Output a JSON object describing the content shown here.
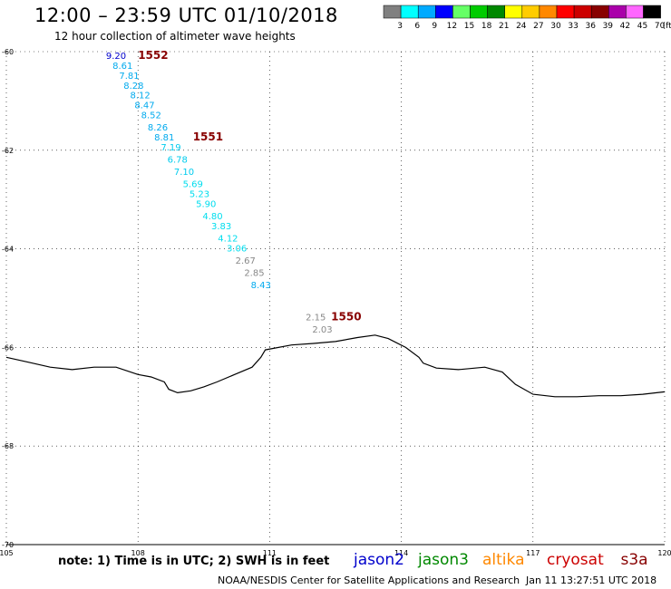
{
  "header": {
    "title": "12:00 – 23:59 UTC 01/10/2018",
    "subtitle": "12 hour collection of altimeter wave heights"
  },
  "legend": {
    "unit": "(ft)",
    "bins": [
      {
        "label": "3",
        "color": "#808080"
      },
      {
        "label": "6",
        "color": "#00ffff"
      },
      {
        "label": "9",
        "color": "#00aaff"
      },
      {
        "label": "12",
        "color": "#0000ff"
      },
      {
        "label": "15",
        "color": "#66ff66"
      },
      {
        "label": "18",
        "color": "#00cc00"
      },
      {
        "label": "21",
        "color": "#008800"
      },
      {
        "label": "24",
        "color": "#ffff00"
      },
      {
        "label": "27",
        "color": "#ffcc00"
      },
      {
        "label": "30",
        "color": "#ff8800"
      },
      {
        "label": "33",
        "color": "#ff0000"
      },
      {
        "label": "36",
        "color": "#cc0000"
      },
      {
        "label": "39",
        "color": "#880000"
      },
      {
        "label": "42",
        "color": "#aa00aa"
      },
      {
        "label": "45",
        "color": "#ff66ff"
      },
      {
        "label": "70",
        "color": "#000000"
      }
    ]
  },
  "axes": {
    "x_ticks": [
      "105",
      "108",
      "111",
      "114",
      "117",
      "120"
    ],
    "y_ticks": [
      "-60",
      "-62",
      "-64",
      "-66",
      "-68",
      "-70"
    ],
    "x_range": [
      105,
      120
    ],
    "y_range": [
      -60,
      -70
    ]
  },
  "passes": [
    {
      "id": "1552",
      "lon": 108.0,
      "lat": -60.15
    },
    {
      "id": "1551",
      "lon": 109.25,
      "lat": -61.8
    },
    {
      "id": "1550",
      "lon": 112.4,
      "lat": -65.45
    }
  ],
  "wave_heights": [
    {
      "value": "9.20",
      "lon": 107.5,
      "lat": -60.15,
      "color": "#0000cc"
    },
    {
      "value": "8.61",
      "lon": 107.65,
      "lat": -60.35,
      "color": "#00aaee"
    },
    {
      "value": "7.81",
      "lon": 107.8,
      "lat": -60.55,
      "color": "#00aaee"
    },
    {
      "value": "8.28",
      "lon": 107.9,
      "lat": -60.75,
      "color": "#00aaee"
    },
    {
      "value": "8.12",
      "lon": 108.05,
      "lat": -60.95,
      "color": "#00aaee"
    },
    {
      "value": "8.47",
      "lon": 108.15,
      "lat": -61.15,
      "color": "#00aaee"
    },
    {
      "value": "8.52",
      "lon": 108.3,
      "lat": -61.35,
      "color": "#00aaee"
    },
    {
      "value": "8.26",
      "lon": 108.45,
      "lat": -61.6,
      "color": "#00aaee"
    },
    {
      "value": "8.81",
      "lon": 108.6,
      "lat": -61.8,
      "color": "#00aaee"
    },
    {
      "value": "7.19",
      "lon": 108.75,
      "lat": -62.0,
      "color": "#00ccee"
    },
    {
      "value": "6.78",
      "lon": 108.9,
      "lat": -62.25,
      "color": "#00ccee"
    },
    {
      "value": "7.10",
      "lon": 109.05,
      "lat": -62.5,
      "color": "#00ccee"
    },
    {
      "value": "5.69",
      "lon": 109.25,
      "lat": -62.75,
      "color": "#00ddee"
    },
    {
      "value": "5.23",
      "lon": 109.4,
      "lat": -62.95,
      "color": "#00ddee"
    },
    {
      "value": "5.90",
      "lon": 109.55,
      "lat": -63.15,
      "color": "#00ddee"
    },
    {
      "value": "4.80",
      "lon": 109.7,
      "lat": -63.4,
      "color": "#00ddee"
    },
    {
      "value": "3.83",
      "lon": 109.9,
      "lat": -63.6,
      "color": "#00ddee"
    },
    {
      "value": "4.12",
      "lon": 110.05,
      "lat": -63.85,
      "color": "#00ddee"
    },
    {
      "value": "3.06",
      "lon": 110.25,
      "lat": -64.05,
      "color": "#00ddee"
    },
    {
      "value": "2.67",
      "lon": 110.45,
      "lat": -64.3,
      "color": "#888888"
    },
    {
      "value": "2.85",
      "lon": 110.65,
      "lat": -64.55,
      "color": "#888888"
    },
    {
      "value": "8.43",
      "lon": 110.8,
      "lat": -64.8,
      "color": "#00aaee"
    },
    {
      "value": "2.15",
      "lon": 112.05,
      "lat": -65.45,
      "color": "#888888"
    },
    {
      "value": "2.03",
      "lon": 112.2,
      "lat": -65.7,
      "color": "#888888"
    }
  ],
  "coastline": [
    [
      105.0,
      -66.2
    ],
    [
      105.5,
      -66.3
    ],
    [
      106.0,
      -66.4
    ],
    [
      106.5,
      -66.45
    ],
    [
      107.0,
      -66.4
    ],
    [
      107.5,
      -66.4
    ],
    [
      108.0,
      -66.55
    ],
    [
      108.3,
      -66.6
    ],
    [
      108.6,
      -66.7
    ],
    [
      108.7,
      -66.85
    ],
    [
      108.9,
      -66.92
    ],
    [
      109.2,
      -66.88
    ],
    [
      109.5,
      -66.8
    ],
    [
      109.8,
      -66.7
    ],
    [
      110.2,
      -66.55
    ],
    [
      110.6,
      -66.4
    ],
    [
      110.8,
      -66.2
    ],
    [
      110.9,
      -66.05
    ],
    [
      111.5,
      -65.95
    ],
    [
      112.0,
      -65.92
    ],
    [
      112.5,
      -65.88
    ],
    [
      113.0,
      -65.8
    ],
    [
      113.4,
      -65.75
    ],
    [
      113.7,
      -65.82
    ],
    [
      114.1,
      -66.0
    ],
    [
      114.4,
      -66.2
    ],
    [
      114.5,
      -66.32
    ],
    [
      114.8,
      -66.42
    ],
    [
      115.3,
      -66.45
    ],
    [
      115.9,
      -66.4
    ],
    [
      116.3,
      -66.5
    ],
    [
      116.6,
      -66.75
    ],
    [
      117.0,
      -66.95
    ],
    [
      117.5,
      -67.0
    ],
    [
      118.0,
      -67.0
    ],
    [
      118.5,
      -66.98
    ],
    [
      119.0,
      -66.98
    ],
    [
      119.5,
      -66.95
    ],
    [
      120.0,
      -66.9
    ]
  ],
  "footer": {
    "note": "note:  1) Time is in UTC;  2) SWH is in feet",
    "credit": "NOAA/NESDIS Center for Satellite Applications and Research",
    "timestamp": "Jan 11 13:27:51 UTC 2018",
    "satellites": [
      {
        "name": "jason2",
        "color": "#0000cc"
      },
      {
        "name": "jason3",
        "color": "#008800"
      },
      {
        "name": "altika",
        "color": "#ff8800"
      },
      {
        "name": "cryosat",
        "color": "#cc0000"
      },
      {
        "name": "s3a",
        "color": "#880000"
      }
    ]
  }
}
